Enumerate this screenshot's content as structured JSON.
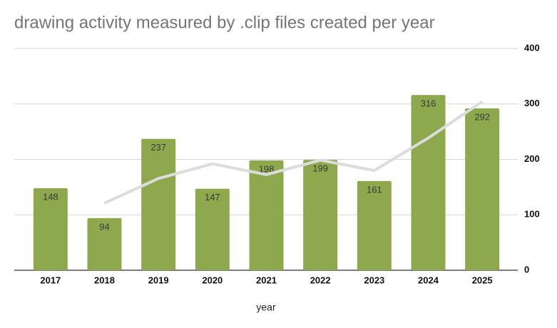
{
  "chart_data": {
    "type": "bar",
    "title": "drawing activity measured by .clip files created per year",
    "x_label": "year",
    "categories": [
      "2017",
      "2018",
      "2019",
      "2020",
      "2021",
      "2022",
      "2023",
      "2024",
      "2025"
    ],
    "series": [
      {
        "type": "bar",
        "color": "#8ea84e",
        "values": [
          148,
          94,
          237,
          147,
          198,
          199,
          161,
          316,
          292
        ]
      },
      {
        "type": "line",
        "color": "#dcdcdc",
        "values": [
          null,
          121,
          165.5,
          192,
          172.5,
          198.5,
          180,
          238.5,
          304
        ]
      }
    ],
    "ylim": [
      0,
      400
    ],
    "yticks": [
      0,
      100,
      200,
      300,
      400
    ],
    "grid": true,
    "y_axis_side": "right"
  }
}
